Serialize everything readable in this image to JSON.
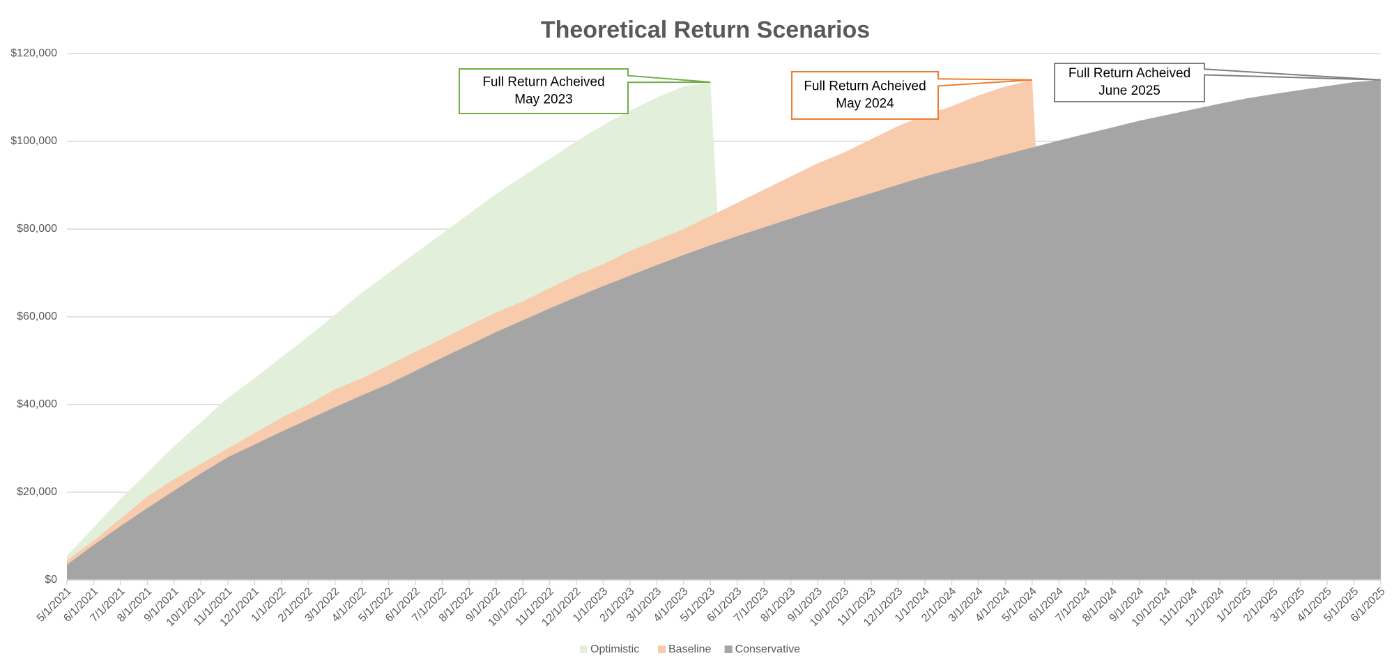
{
  "chart_data": {
    "type": "area",
    "title": "Theoretical Return Scenarios",
    "categories": [
      "5/1/2021",
      "6/1/2021",
      "7/1/2021",
      "8/1/2021",
      "9/1/2021",
      "10/1/2021",
      "11/1/2021",
      "12/1/2021",
      "1/1/2022",
      "2/1/2022",
      "3/1/2022",
      "4/1/2022",
      "5/1/2022",
      "6/1/2022",
      "7/1/2022",
      "8/1/2022",
      "9/1/2022",
      "10/1/2022",
      "11/1/2022",
      "12/1/2022",
      "1/1/2023",
      "2/1/2023",
      "3/1/2023",
      "4/1/2023",
      "5/1/2023",
      "6/1/2023",
      "7/1/2023",
      "8/1/2023",
      "9/1/2023",
      "10/1/2023",
      "11/1/2023",
      "12/1/2023",
      "1/1/2024",
      "2/1/2024",
      "3/1/2024",
      "4/1/2024",
      "5/1/2024",
      "6/1/2024",
      "7/1/2024",
      "8/1/2024",
      "9/1/2024",
      "10/1/2024",
      "11/1/2024",
      "12/1/2024",
      "1/1/2025",
      "2/1/2025",
      "3/1/2025",
      "4/1/2025",
      "5/1/2025",
      "6/1/2025"
    ],
    "series": [
      {
        "name": "Optimistic",
        "color": "#e2efda",
        "values": [
          5500,
          12000,
          18500,
          24500,
          30500,
          36000,
          41500,
          46000,
          50800,
          55500,
          60500,
          65500,
          70000,
          74500,
          79000,
          83500,
          88000,
          92000,
          96000,
          100000,
          103700,
          107000,
          110000,
          112500,
          113500,
          0,
          0,
          0,
          0,
          0,
          0,
          0,
          0,
          0,
          0,
          0,
          0,
          0,
          0,
          0,
          0,
          0,
          0,
          0,
          0,
          0,
          0,
          0,
          0,
          0
        ]
      },
      {
        "name": "Baseline",
        "color": "#f8cbad",
        "values": [
          4500,
          9000,
          14000,
          19000,
          23000,
          26500,
          30000,
          33500,
          37000,
          40000,
          43500,
          46000,
          49000,
          52000,
          55000,
          58000,
          61000,
          63500,
          66500,
          69500,
          72000,
          75000,
          77500,
          80000,
          83000,
          86000,
          89000,
          92000,
          95000,
          97500,
          100500,
          103500,
          106000,
          108000,
          110500,
          112500,
          114000,
          0,
          0,
          0,
          0,
          0,
          0,
          0,
          0,
          0,
          0,
          0,
          0,
          0
        ]
      },
      {
        "name": "Conservative",
        "color": "#a5a5a5",
        "values": [
          3500,
          8000,
          12300,
          16400,
          20400,
          24300,
          28000,
          30900,
          33800,
          36600,
          39400,
          42100,
          44700,
          47700,
          50700,
          53600,
          56500,
          59200,
          61900,
          64500,
          67000,
          69400,
          71800,
          74100,
          76300,
          78400,
          80400,
          82400,
          84400,
          86300,
          88200,
          90100,
          92000,
          93700,
          95300,
          97000,
          98600,
          100200,
          101700,
          103200,
          104700,
          106000,
          107300,
          108600,
          109800,
          110800,
          111700,
          112600,
          113500,
          114000
        ]
      }
    ],
    "ylim": [
      0,
      120000
    ],
    "yticks": [
      {
        "value": 0,
        "label": "$0"
      },
      {
        "value": 20000,
        "label": "$20,000"
      },
      {
        "value": 40000,
        "label": "$40,000"
      },
      {
        "value": 60000,
        "label": "$60,000"
      },
      {
        "value": 80000,
        "label": "$80,000"
      },
      {
        "value": 100000,
        "label": "$100,000"
      },
      {
        "value": 120000,
        "label": "$120,000"
      }
    ],
    "grid": true,
    "legend": "bottom",
    "annotations": [
      {
        "lines": [
          "Full Return Acheived",
          "May 2023"
        ],
        "color": "#70ad47"
      },
      {
        "lines": [
          "Full Return Acheived",
          "May 2024"
        ],
        "color": "#ed7d31"
      },
      {
        "lines": [
          "Full Return Acheived",
          "June 2025"
        ],
        "color": "#7f7f7f"
      }
    ]
  }
}
